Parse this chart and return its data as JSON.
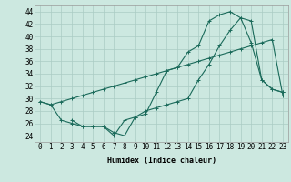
{
  "xlabel": "Humidex (Indice chaleur)",
  "x_ticks": [
    0,
    1,
    2,
    3,
    4,
    5,
    6,
    7,
    8,
    9,
    10,
    11,
    12,
    13,
    14,
    15,
    16,
    17,
    18,
    19,
    20,
    21,
    22,
    23
  ],
  "xlim": [
    -0.5,
    23.5
  ],
  "ylim": [
    23,
    45
  ],
  "yticks": [
    24,
    26,
    28,
    30,
    32,
    34,
    36,
    38,
    40,
    42,
    44
  ],
  "bg_color": "#cce8e0",
  "grid_color": "#aaccc4",
  "line_color": "#1a6a5a",
  "line1_x": [
    0,
    1,
    2,
    3,
    4,
    5,
    6,
    7,
    8,
    9,
    10,
    11,
    12,
    13,
    14,
    15,
    16,
    17,
    18,
    19,
    20,
    21,
    22,
    23
  ],
  "line1_y": [
    29.5,
    29.0,
    29.5,
    30.0,
    30.5,
    31.0,
    31.5,
    32.0,
    32.5,
    33.0,
    33.5,
    34.0,
    34.5,
    35.0,
    35.5,
    36.0,
    36.5,
    37.0,
    37.5,
    38.0,
    38.5,
    39.0,
    39.5,
    30.5
  ],
  "line2_x": [
    0,
    1,
    2,
    3,
    4,
    5,
    6,
    7,
    8,
    9,
    10,
    11,
    12,
    13,
    14,
    15,
    16,
    17,
    18,
    19,
    20,
    21,
    22,
    23
  ],
  "line2_y": [
    29.5,
    29.0,
    26.5,
    26.0,
    25.5,
    25.5,
    25.5,
    24.5,
    24.0,
    27.0,
    27.5,
    31.0,
    34.5,
    35.0,
    37.5,
    38.5,
    42.5,
    43.5,
    44.0,
    43.0,
    39.0,
    33.0,
    31.5,
    31.0
  ],
  "line3_x": [
    3,
    4,
    5,
    6,
    7,
    8,
    9,
    10,
    11,
    12,
    13,
    14,
    15,
    16,
    17,
    18,
    19,
    20,
    21,
    22,
    23
  ],
  "line3_y": [
    26.5,
    25.5,
    25.5,
    25.5,
    24.0,
    26.5,
    27.0,
    28.0,
    28.5,
    29.0,
    29.5,
    30.0,
    33.0,
    35.5,
    38.5,
    41.0,
    43.0,
    42.5,
    33.0,
    31.5,
    31.0
  ],
  "tick_fontsize": 5.5,
  "xlabel_fontsize": 6.0
}
